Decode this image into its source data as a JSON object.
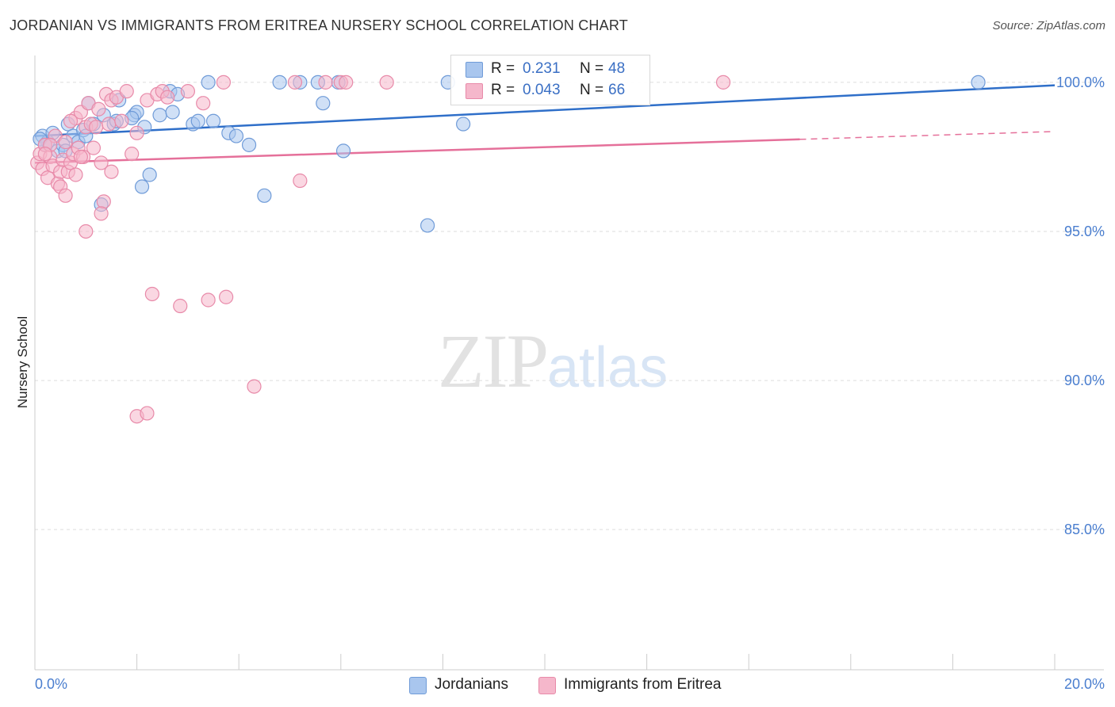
{
  "header": {
    "title": "JORDANIAN VS IMMIGRANTS FROM ERITREA NURSERY SCHOOL CORRELATION CHART",
    "source": "Source: ZipAtlas.com"
  },
  "watermark": {
    "part1": "ZIP",
    "part2": "atlas"
  },
  "legend_top": {
    "rows": [
      {
        "r_label": "R =",
        "r_value": "0.231",
        "n_label": "N =",
        "n_value": "48"
      },
      {
        "r_label": "R =",
        "r_value": "0.043",
        "n_label": "N =",
        "n_value": "66"
      }
    ]
  },
  "legend_bottom": {
    "items": [
      {
        "label": "Jordanians"
      },
      {
        "label": "Immigrants from Eritrea"
      }
    ]
  },
  "colors": {
    "blue_fill": "#a9c6ee",
    "blue_stroke": "#6f9bd8",
    "blue_line": "#2f6fc9",
    "pink_fill": "#f5b7cb",
    "pink_stroke": "#e88aa9",
    "pink_line": "#e5709a",
    "tick_text": "#4a7ecf",
    "grid": "#dddddd"
  },
  "chart_data": {
    "type": "scatter",
    "title": "JORDANIAN VS IMMIGRANTS FROM ERITREA NURSERY SCHOOL CORRELATION CHART",
    "xlabel": "",
    "ylabel": "Nursery School",
    "xlim": [
      0,
      20
    ],
    "ylim": [
      80.3,
      100.9
    ],
    "x_tick_labels": [
      "0.0%",
      "20.0%"
    ],
    "y_ticks": [
      100,
      95,
      90,
      85
    ],
    "y_tick_labels": [
      "100.0%",
      "95.0%",
      "90.0%",
      "85.0%"
    ],
    "grid": true,
    "series": [
      {
        "name": "Jordanians",
        "color": "blue",
        "r": "0.231",
        "n": "48",
        "trend": {
          "x": [
            0,
            20
          ],
          "y": [
            98.2,
            99.9
          ],
          "dashed_from": null
        },
        "points": [
          [
            0.15,
            98.2
          ],
          [
            0.25,
            98.0
          ],
          [
            0.35,
            98.3
          ],
          [
            0.45,
            97.7
          ],
          [
            0.55,
            97.9
          ],
          [
            0.65,
            98.6
          ],
          [
            0.75,
            98.2
          ],
          [
            0.85,
            98.0
          ],
          [
            0.95,
            98.4
          ],
          [
            1.05,
            99.3
          ],
          [
            1.15,
            98.6
          ],
          [
            1.35,
            98.9
          ],
          [
            1.55,
            98.6
          ],
          [
            1.65,
            99.4
          ],
          [
            1.95,
            98.9
          ],
          [
            2.15,
            98.5
          ],
          [
            2.25,
            96.9
          ],
          [
            2.45,
            98.9
          ],
          [
            2.65,
            99.7
          ],
          [
            2.8,
            99.6
          ],
          [
            3.1,
            98.6
          ],
          [
            3.4,
            100.0
          ],
          [
            3.5,
            98.7
          ],
          [
            3.8,
            98.3
          ],
          [
            3.95,
            98.2
          ],
          [
            4.2,
            97.9
          ],
          [
            4.5,
            96.2
          ],
          [
            4.8,
            100.0
          ],
          [
            5.2,
            100.0
          ],
          [
            5.55,
            100.0
          ],
          [
            5.65,
            99.3
          ],
          [
            5.95,
            100.0
          ],
          [
            6.05,
            97.7
          ],
          [
            7.7,
            95.2
          ],
          [
            8.1,
            100.0
          ],
          [
            8.4,
            98.6
          ],
          [
            18.5,
            100.0
          ],
          [
            0.1,
            98.1
          ],
          [
            0.2,
            97.9
          ],
          [
            0.6,
            97.7
          ],
          [
            1.0,
            98.2
          ],
          [
            1.6,
            98.7
          ],
          [
            2.0,
            99.0
          ],
          [
            2.1,
            96.5
          ],
          [
            1.3,
            95.9
          ],
          [
            3.2,
            98.7
          ],
          [
            2.7,
            99.0
          ],
          [
            1.9,
            98.8
          ]
        ]
      },
      {
        "name": "Immigrants from Eritrea",
        "color": "pink",
        "r": "0.043",
        "n": "66",
        "trend": {
          "x": [
            0,
            20
          ],
          "y": [
            97.3,
            98.35
          ],
          "dashed_from": 15.0
        },
        "points": [
          [
            0.05,
            97.3
          ],
          [
            0.1,
            97.6
          ],
          [
            0.15,
            97.1
          ],
          [
            0.2,
            97.9
          ],
          [
            0.25,
            96.8
          ],
          [
            0.3,
            97.5
          ],
          [
            0.35,
            97.2
          ],
          [
            0.4,
            98.2
          ],
          [
            0.45,
            96.6
          ],
          [
            0.5,
            97.0
          ],
          [
            0.55,
            97.4
          ],
          [
            0.6,
            98.0
          ],
          [
            0.65,
            97.0
          ],
          [
            0.7,
            97.3
          ],
          [
            0.75,
            97.6
          ],
          [
            0.8,
            98.8
          ],
          [
            0.85,
            97.8
          ],
          [
            0.9,
            99.0
          ],
          [
            0.95,
            97.5
          ],
          [
            1.0,
            98.5
          ],
          [
            1.05,
            99.3
          ],
          [
            1.1,
            98.6
          ],
          [
            1.15,
            97.8
          ],
          [
            1.2,
            98.5
          ],
          [
            1.25,
            99.1
          ],
          [
            1.3,
            97.3
          ],
          [
            1.35,
            96.0
          ],
          [
            1.4,
            99.6
          ],
          [
            1.45,
            98.6
          ],
          [
            1.5,
            99.4
          ],
          [
            1.6,
            99.5
          ],
          [
            1.7,
            98.7
          ],
          [
            1.8,
            99.7
          ],
          [
            1.9,
            97.6
          ],
          [
            2.0,
            98.3
          ],
          [
            2.2,
            99.4
          ],
          [
            2.3,
            92.9
          ],
          [
            2.4,
            99.6
          ],
          [
            2.5,
            99.7
          ],
          [
            2.6,
            99.5
          ],
          [
            2.85,
            92.5
          ],
          [
            3.0,
            99.7
          ],
          [
            3.3,
            99.3
          ],
          [
            3.4,
            92.7
          ],
          [
            3.7,
            100.0
          ],
          [
            3.75,
            92.8
          ],
          [
            4.3,
            89.8
          ],
          [
            5.1,
            100.0
          ],
          [
            5.2,
            96.7
          ],
          [
            5.7,
            100.0
          ],
          [
            6.0,
            100.0
          ],
          [
            6.1,
            100.0
          ],
          [
            6.9,
            100.0
          ],
          [
            13.5,
            100.0
          ],
          [
            1.0,
            95.0
          ],
          [
            2.0,
            88.8
          ],
          [
            2.2,
            88.9
          ],
          [
            0.5,
            96.5
          ],
          [
            0.3,
            97.9
          ],
          [
            0.8,
            96.9
          ],
          [
            1.3,
            95.6
          ],
          [
            0.7,
            98.7
          ],
          [
            0.2,
            97.6
          ],
          [
            0.9,
            97.5
          ],
          [
            1.5,
            97.0
          ],
          [
            0.6,
            96.2
          ]
        ]
      }
    ]
  }
}
